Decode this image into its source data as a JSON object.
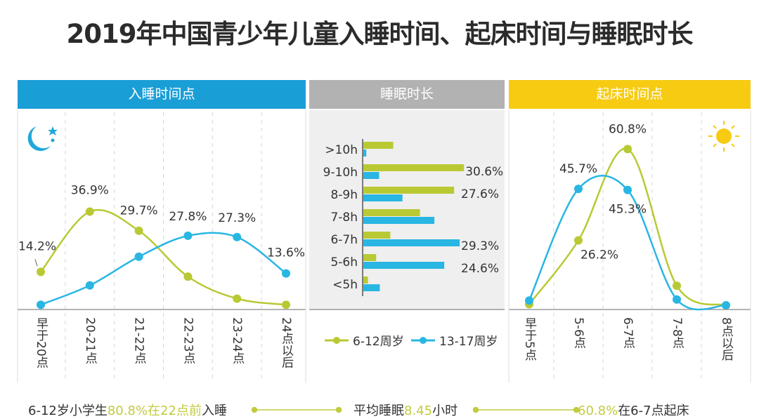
{
  "title": "2019年中国青少年儿童入睡时间、起床时间与睡眠时长",
  "colors": {
    "series_6_12": "#b9c934",
    "series_13_17": "#29b6e2",
    "panel_sleep": "#1a9ed6",
    "panel_duration": "#b2b2b2",
    "panel_wake": "#f6cb12",
    "highlight_text": "#c2cb3f"
  },
  "icons": {
    "sleep_panel": "moon-stars-icon",
    "wake_panel": "sun-icon"
  },
  "legend": {
    "series": [
      "6-12周岁",
      "13-17周岁"
    ]
  },
  "chart_data": [
    {
      "type": "line",
      "title": "入睡时间点",
      "categories": [
        "早于20点",
        "20-21点",
        "21-22点",
        "22-23点",
        "23-24点",
        "24点以后"
      ],
      "unit": "%",
      "series": [
        {
          "name": "6-12周岁",
          "values": [
            14.2,
            36.9,
            29.7,
            12.4,
            4.1,
            1.8
          ],
          "labels": [
            "14.2%",
            "36.9%",
            "29.7%",
            null,
            null,
            null
          ]
        },
        {
          "name": "13-17周岁",
          "values": [
            1.8,
            9.1,
            19.9,
            27.8,
            27.3,
            13.6
          ],
          "labels": [
            null,
            null,
            null,
            "27.8%",
            "27.3%",
            "13.6%"
          ]
        }
      ],
      "grid": "vertical dashed"
    },
    {
      "type": "bar",
      "orientation": "horizontal",
      "title": "睡眠时长",
      "categories": [
        ">10h",
        "9-10h",
        "8-9h",
        "7-8h",
        "6-7h",
        "5-6h",
        "<5h"
      ],
      "unit": "%",
      "series": [
        {
          "name": "6-12周岁",
          "values": [
            9.1,
            30.6,
            27.6,
            17.2,
            8.2,
            3.9,
            1.4
          ],
          "labels": [
            null,
            "30.6%",
            "27.6%",
            null,
            null,
            null,
            null
          ]
        },
        {
          "name": "13-17周岁",
          "values": [
            0.9,
            4.8,
            11.9,
            21.6,
            29.3,
            24.6,
            5.0
          ],
          "labels": [
            null,
            null,
            null,
            null,
            "29.3%",
            "24.6%",
            null
          ]
        }
      ],
      "legend": "bottom"
    },
    {
      "type": "line",
      "title": "起床时间点",
      "categories": [
        "早于5点",
        "5-6点",
        "6-7点",
        "7-8点",
        "8点以后"
      ],
      "unit": "%",
      "series": [
        {
          "name": "6-12周岁",
          "values": [
            2.0,
            26.2,
            60.8,
            9.0,
            1.6
          ],
          "labels": [
            null,
            "26.2%",
            "60.8%",
            null,
            null
          ]
        },
        {
          "name": "13-17周岁",
          "values": [
            3.4,
            45.7,
            45.3,
            3.8,
            1.6
          ],
          "labels": [
            null,
            "45.7%",
            "45.3%",
            null,
            null
          ]
        }
      ],
      "grid": "vertical dashed"
    }
  ],
  "footer": {
    "left": {
      "a": "6-12岁小学生",
      "b": "80.8%在22点前",
      "c": "入睡"
    },
    "middle": {
      "a": "平均睡眠",
      "b": "8.45",
      "c": "小时"
    },
    "right": {
      "b": "60.8%",
      "c": "在6-7点起床"
    }
  }
}
